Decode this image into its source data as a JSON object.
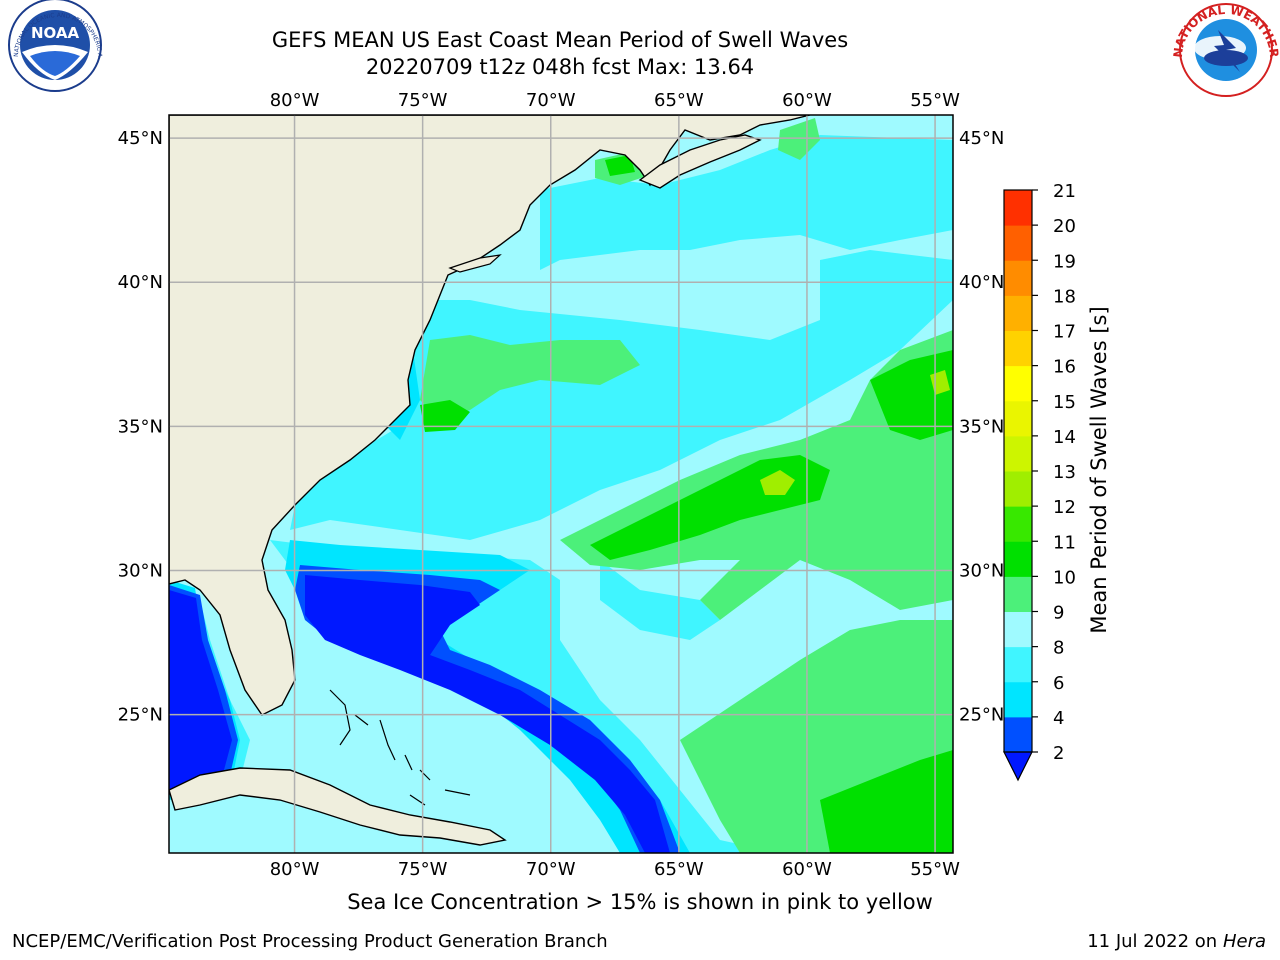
{
  "header": {
    "title_line1": "GEFS MEAN US East Coast Mean Period of Swell Waves",
    "title_line2": "20220709 t12z 048h fcst   Max: 13.64"
  },
  "map": {
    "lon_labels": [
      "80°W",
      "75°W",
      "70°W",
      "65°W",
      "60°W",
      "55°W"
    ],
    "lat_labels": [
      "45°N",
      "40°N",
      "35°N",
      "30°N",
      "25°N"
    ],
    "lon_values": [
      -80,
      -75,
      -70,
      -65,
      -60,
      -55
    ],
    "lat_values": [
      45,
      40,
      35,
      30,
      25
    ],
    "extent": {
      "lon_min": -84.9,
      "lon_max": -54.3,
      "lat_min": 20.2,
      "lat_max": 45.8
    },
    "colors": {
      "land": "#efeedd",
      "no_data": "#ffffff",
      "coast": "#000000",
      "grid": "#b0b0b0"
    }
  },
  "colorbar": {
    "label": "Mean Period of Swell Waves [s]",
    "ticks": [
      "2",
      "4",
      "6",
      "8",
      "9",
      "10",
      "11",
      "12",
      "13",
      "14",
      "15",
      "16",
      "17",
      "18",
      "19",
      "20",
      "21"
    ],
    "colors": [
      "#0050ff",
      "#00e5ff",
      "#40f5ff",
      "#9ffaff",
      "#4cf07a",
      "#00e000",
      "#38e800",
      "#a0ee00",
      "#cdf500",
      "#eaf500",
      "#ffff00",
      "#ffd200",
      "#ffb000",
      "#ff8c00",
      "#ff6000",
      "#ff3000",
      "#ff0000"
    ],
    "under_color": "#0018ff"
  },
  "footer": {
    "note": "Sea Ice Concentration > 15% is shown in pink to yellow",
    "credit": "NCEP/EMC/Verification Post Processing Product Generation Branch",
    "date": "11 Jul 2022 on ",
    "machine": "Hera"
  },
  "logos": {
    "noaa_text": "NOAA",
    "noaa_ring": "NATIONAL OCEANIC AND ATMOSPHERIC ADMINISTRATION · U.S. DEPARTMENT OF COMMERCE",
    "nws_ring": "NATIONAL WEATHER SERVICE"
  }
}
